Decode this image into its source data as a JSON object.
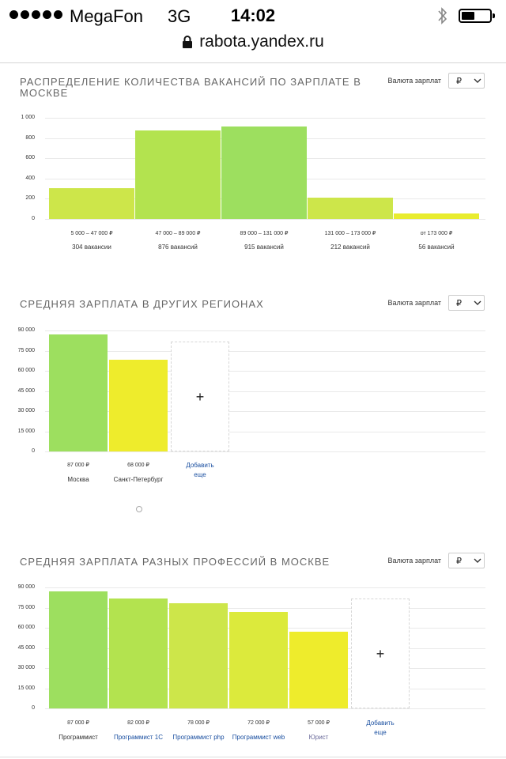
{
  "status_bar": {
    "carrier": "MegaFon",
    "network": "3G",
    "time": "14:02"
  },
  "browser": {
    "url": "rabota.yandex.ru"
  },
  "currency": {
    "label": "Валюта зарплат",
    "value": "₽"
  },
  "chart_data": [
    {
      "type": "bar",
      "title": "РАСПРЕДЕЛЕНИЕ КОЛИЧЕСТВА ВАКАНСИЙ ПО ЗАРПЛАТЕ В МОСКВЕ",
      "categories": [
        "5 000 – 47 000 ₽",
        "47 000 – 89 000 ₽",
        "89 000 – 131 000 ₽",
        "131 000 – 173 000 ₽",
        "от 173 000 ₽"
      ],
      "values": [
        304,
        876,
        915,
        212,
        56
      ],
      "value_labels": [
        "304 вакансии",
        "876 вакансий",
        "915 вакансий",
        "212 вакансий",
        "56 вакансий"
      ],
      "yticks": [
        "0",
        "200",
        "400",
        "600",
        "800",
        "1 000"
      ],
      "ylim": [
        0,
        1000
      ],
      "colors": [
        "#cde64a",
        "#b3e34f",
        "#9ddf5f",
        "#cde64a",
        "#e8ec2f"
      ]
    },
    {
      "type": "bar",
      "title": "СРЕДНЯЯ ЗАРПЛАТА В ДРУГИХ РЕГИОНАХ",
      "categories": [
        "Москва",
        "Санкт-Петербург"
      ],
      "values": [
        87000,
        68000
      ],
      "value_labels": [
        "87 000 ₽",
        "68 000 ₽"
      ],
      "yticks": [
        "0",
        "15 000",
        "30 000",
        "45 000",
        "60 000",
        "75 000",
        "90 000"
      ],
      "ylim": [
        0,
        90000
      ],
      "colors": [
        "#9ddf5f",
        "#eeec2c"
      ],
      "add_label": [
        "Добавить",
        "еще"
      ]
    },
    {
      "type": "bar",
      "title": "СРЕДНЯЯ ЗАРПЛАТА РАЗНЫХ ПРОФЕССИЙ В МОСКВЕ",
      "categories": [
        "Программист",
        "Программист 1С",
        "Программист php",
        "Программист web",
        "Юрист"
      ],
      "values": [
        87000,
        82000,
        78000,
        72000,
        57000
      ],
      "value_labels": [
        "87 000 ₽",
        "82 000 ₽",
        "78 000 ₽",
        "72 000 ₽",
        "57 000 ₽"
      ],
      "yticks": [
        "0",
        "15 000",
        "30 000",
        "45 000",
        "60 000",
        "75 000",
        "90 000"
      ],
      "ylim": [
        0,
        90000
      ],
      "colors": [
        "#9ddf5f",
        "#b3e34f",
        "#cde64a",
        "#dcea3c",
        "#eeec2c"
      ],
      "add_label": [
        "Добавить",
        "еще"
      ]
    }
  ]
}
